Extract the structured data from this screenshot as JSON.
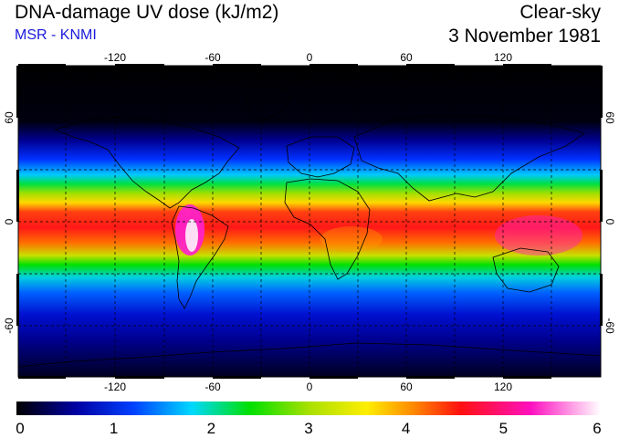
{
  "header": {
    "title": "DNA-damage UV dose (kJ/m2)",
    "subtitle": "MSR - KNMI",
    "sky_condition": "Clear-sky",
    "date": "3 November 1981"
  },
  "map": {
    "lon_ticks": [
      "-120",
      "-60",
      "0",
      "60",
      "120"
    ],
    "lat_ticks_left": [
      "60",
      "0",
      "-60"
    ],
    "lat_ticks_right": [
      "60",
      "0",
      "-60"
    ],
    "lon_range": [
      -180,
      180
    ],
    "lat_range": [
      -90,
      90
    ],
    "gridlines": "dashed every 30 degrees",
    "colors": {
      "stops": [
        "#000000",
        "#0000d0",
        "#00d8ff",
        "#00e000",
        "#ffee00",
        "#ff2020",
        "#ff10c0",
        "#ffffff"
      ]
    }
  },
  "colorbar": {
    "min": 0,
    "max": 6,
    "labels": [
      "0",
      "1",
      "2",
      "3",
      "4",
      "5",
      "6"
    ],
    "colors": [
      "#000000",
      "#0000b0",
      "#0050ff",
      "#00d8ff",
      "#00e000",
      "#a0e000",
      "#ffee00",
      "#ff9000",
      "#ff2020",
      "#ff10c0",
      "#ffffff"
    ]
  }
}
